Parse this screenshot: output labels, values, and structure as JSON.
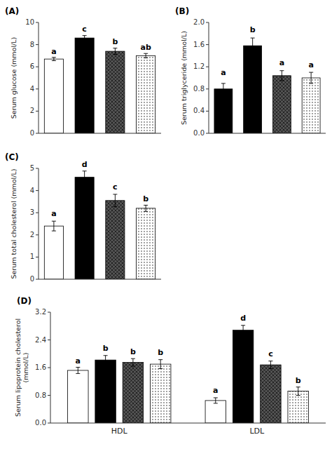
{
  "chart_data": [
    {
      "type": "bar",
      "title": "(A)",
      "ylabel": "Serum glucose (mmol/L)",
      "categories": [
        null,
        null,
        null,
        null
      ],
      "values": [
        6.7,
        8.6,
        7.4,
        7.0
      ],
      "errors": [
        0.15,
        0.22,
        0.28,
        0.2
      ],
      "letters": [
        "a",
        "c",
        "b",
        "ab"
      ],
      "letter_y": [
        7.05,
        9.05,
        7.9,
        7.4
      ],
      "colors": [
        "white",
        "black",
        "#555555",
        "white"
      ],
      "ylim": [
        0,
        10
      ],
      "yticks": [
        0,
        2,
        4,
        6,
        8,
        10
      ],
      "grid": false
    },
    {
      "type": "bar",
      "title": "(B)",
      "ylabel": "Serum triglyceride (mmol/L)",
      "categories": [
        null,
        null,
        null,
        null
      ],
      "values": [
        0.8,
        1.58,
        1.04,
        1.0
      ],
      "errors": [
        0.1,
        0.14,
        0.09,
        0.1
      ],
      "letters": [
        "a",
        "b",
        "a",
        "a"
      ],
      "letter_y": [
        1.02,
        1.8,
        1.2,
        1.17
      ],
      "colors": [
        "black",
        "black",
        "#555555",
        "white"
      ],
      "ylim": [
        0.0,
        2.0
      ],
      "yticks": [
        {
          "value": 0,
          "label": "0.0"
        },
        0.4,
        0.8,
        1.2,
        1.6,
        {
          "value": 2,
          "label": "2.0"
        }
      ],
      "grid": false
    },
    {
      "type": "bar",
      "title": "(C)",
      "ylabel": "Serum  total cholesterol (mmol/L)",
      "categories": [
        null,
        null,
        null,
        null
      ],
      "values": [
        2.4,
        4.6,
        3.55,
        3.2
      ],
      "errors": [
        0.22,
        0.28,
        0.28,
        0.14
      ],
      "letters": [
        "a",
        "d",
        "c",
        "b"
      ],
      "letter_y": [
        2.8,
        5.0,
        3.98,
        3.44
      ],
      "colors": [
        "white",
        "black",
        "#555555",
        "white"
      ],
      "ylim": [
        0,
        5
      ],
      "yticks": [
        0,
        1,
        2,
        3,
        4,
        5
      ],
      "grid": false
    },
    {
      "type": "bar",
      "title": "(D)",
      "ylabel": "Serum lipoprotein cholesterol\n(mmol/L)",
      "categories": [
        "HDL",
        "LDL"
      ],
      "series": [
        {
          "color": "white",
          "values": [
            1.52,
            0.65
          ],
          "errors": [
            0.09,
            0.08
          ],
          "letters": [
            "a",
            "a"
          ],
          "letter_y": [
            1.69,
            0.83
          ]
        },
        {
          "color": "black",
          "values": [
            1.82,
            2.68
          ],
          "errors": [
            0.13,
            0.14
          ],
          "letters": [
            "b",
            "d"
          ],
          "letter_y": [
            2.04,
            2.92
          ]
        },
        {
          "color": "#555555",
          "values": [
            1.75,
            1.68
          ],
          "errors": [
            0.11,
            0.11
          ],
          "letters": [
            "b",
            "c"
          ],
          "letter_y": [
            1.95,
            1.88
          ]
        },
        {
          "color": "white",
          "values": [
            1.7,
            0.92
          ],
          "errors": [
            0.13,
            0.12
          ],
          "letters": [
            "b",
            "b"
          ],
          "letter_y": [
            1.93,
            1.12
          ]
        }
      ],
      "ylim": [
        0,
        3.2
      ],
      "yticks": [
        {
          "value": 0,
          "label": "0.0"
        },
        0.8,
        1.6,
        2.4,
        3.2
      ],
      "grid": false
    }
  ]
}
